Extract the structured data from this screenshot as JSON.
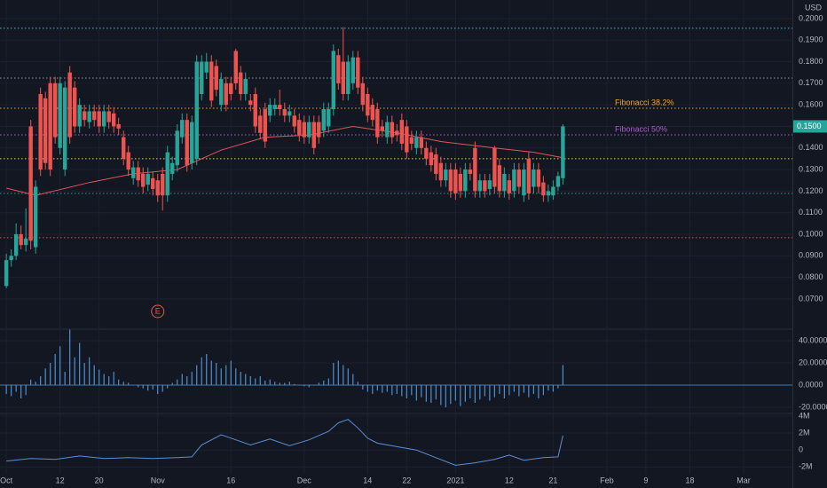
{
  "chart_data": [
    {
      "type": "candlestick",
      "currency": "USD",
      "x": [
        0,
        1,
        2,
        3,
        4,
        5,
        6,
        7,
        8,
        9,
        10,
        11,
        12,
        13,
        14,
        15,
        16,
        17,
        18,
        19,
        20,
        21,
        22,
        23,
        24,
        25,
        26,
        27,
        28,
        29,
        30,
        31,
        32,
        33,
        34,
        35,
        36,
        37,
        38,
        39,
        40,
        41,
        42,
        43,
        44,
        45,
        46,
        47,
        48,
        49,
        50,
        51,
        52,
        53,
        54,
        55,
        56,
        57,
        58,
        59,
        60,
        61,
        62,
        63,
        64,
        65,
        66,
        67,
        68,
        69,
        70,
        71,
        72,
        73,
        74,
        75,
        76,
        77,
        78,
        79,
        80,
        81,
        82,
        83,
        84,
        85,
        86,
        87,
        88,
        89,
        90,
        91,
        92,
        93,
        94,
        95,
        96,
        97,
        98,
        99,
        100,
        101,
        102,
        103,
        104,
        105,
        106,
        107,
        108,
        109,
        110,
        111,
        112,
        113,
        114
      ],
      "open": [
        0.076,
        0.088,
        0.09,
        0.1,
        0.095,
        0.15,
        0.094,
        0.165,
        0.163,
        0.17,
        0.17,
        0.14,
        0.13,
        0.175,
        0.168,
        0.15,
        0.157,
        0.152,
        0.157,
        0.157,
        0.15,
        0.157,
        0.156,
        0.151,
        0.145,
        0.138,
        0.126,
        0.131,
        0.128,
        0.123,
        0.126,
        0.125,
        0.128,
        0.118,
        0.128,
        0.132,
        0.145,
        0.153,
        0.133,
        0.135,
        0.165,
        0.175,
        0.18,
        0.178,
        0.16,
        0.17,
        0.17,
        0.185,
        0.175,
        0.165,
        0.162,
        0.165,
        0.155,
        0.158,
        0.155,
        0.158,
        0.16,
        0.158,
        0.155,
        0.155,
        0.153,
        0.152,
        0.145,
        0.152,
        0.152,
        0.148,
        0.15,
        0.158,
        0.183,
        0.18,
        0.165,
        0.17,
        0.182,
        0.17,
        0.165,
        0.16,
        0.158,
        0.15,
        0.145,
        0.152,
        0.148,
        0.153,
        0.15,
        0.145,
        0.14,
        0.145,
        0.14,
        0.138,
        0.137,
        0.133,
        0.125,
        0.13,
        0.13,
        0.128,
        0.12,
        0.13,
        0.14,
        0.12,
        0.125,
        0.121,
        0.14,
        0.132,
        0.12,
        0.125,
        0.12,
        0.13,
        0.118,
        0.135,
        0.122,
        0.13,
        0.124,
        0.118,
        0.118,
        0.122,
        0.126
      ],
      "high": [
        0.091,
        0.093,
        0.105,
        0.104,
        0.112,
        0.153,
        0.125,
        0.168,
        0.166,
        0.173,
        0.173,
        0.173,
        0.171,
        0.178,
        0.171,
        0.163,
        0.16,
        0.16,
        0.16,
        0.16,
        0.16,
        0.16,
        0.159,
        0.154,
        0.148,
        0.141,
        0.134,
        0.134,
        0.131,
        0.131,
        0.129,
        0.128,
        0.131,
        0.141,
        0.136,
        0.151,
        0.156,
        0.156,
        0.155,
        0.183,
        0.183,
        0.184,
        0.183,
        0.181,
        0.175,
        0.173,
        0.173,
        0.186,
        0.178,
        0.175,
        0.165,
        0.168,
        0.158,
        0.161,
        0.163,
        0.163,
        0.167,
        0.161,
        0.16,
        0.158,
        0.156,
        0.155,
        0.155,
        0.155,
        0.155,
        0.161,
        0.161,
        0.188,
        0.186,
        0.196,
        0.183,
        0.185,
        0.185,
        0.173,
        0.168,
        0.163,
        0.161,
        0.153,
        0.155,
        0.155,
        0.151,
        0.156,
        0.153,
        0.148,
        0.148,
        0.148,
        0.143,
        0.141,
        0.14,
        0.136,
        0.133,
        0.133,
        0.133,
        0.131,
        0.133,
        0.133,
        0.143,
        0.128,
        0.128,
        0.128,
        0.141,
        0.135,
        0.131,
        0.128,
        0.133,
        0.133,
        0.133,
        0.138,
        0.133,
        0.133,
        0.127,
        0.123,
        0.125,
        0.129,
        0.151
      ],
      "low": [
        0.075,
        0.085,
        0.088,
        0.093,
        0.092,
        0.093,
        0.091,
        0.127,
        0.13,
        0.127,
        0.142,
        0.137,
        0.127,
        0.142,
        0.147,
        0.147,
        0.15,
        0.149,
        0.15,
        0.147,
        0.147,
        0.149,
        0.147,
        0.146,
        0.132,
        0.127,
        0.123,
        0.122,
        0.119,
        0.12,
        0.118,
        0.115,
        0.111,
        0.115,
        0.125,
        0.129,
        0.142,
        0.129,
        0.13,
        0.132,
        0.162,
        0.172,
        0.159,
        0.164,
        0.157,
        0.157,
        0.162,
        0.167,
        0.162,
        0.162,
        0.157,
        0.147,
        0.144,
        0.14,
        0.152,
        0.155,
        0.155,
        0.152,
        0.152,
        0.147,
        0.143,
        0.142,
        0.142,
        0.137,
        0.142,
        0.145,
        0.147,
        0.155,
        0.167,
        0.162,
        0.162,
        0.167,
        0.165,
        0.157,
        0.152,
        0.15,
        0.142,
        0.145,
        0.142,
        0.142,
        0.143,
        0.139,
        0.135,
        0.139,
        0.137,
        0.137,
        0.132,
        0.129,
        0.125,
        0.122,
        0.122,
        0.117,
        0.116,
        0.117,
        0.117,
        0.125,
        0.117,
        0.117,
        0.117,
        0.118,
        0.119,
        0.117,
        0.117,
        0.116,
        0.117,
        0.119,
        0.115,
        0.116,
        0.119,
        0.119,
        0.115,
        0.115,
        0.116,
        0.12,
        0.123
      ],
      "close": [
        0.088,
        0.09,
        0.1,
        0.095,
        0.098,
        0.097,
        0.122,
        0.13,
        0.133,
        0.13,
        0.145,
        0.17,
        0.168,
        0.145,
        0.15,
        0.16,
        0.153,
        0.157,
        0.153,
        0.15,
        0.157,
        0.152,
        0.15,
        0.149,
        0.135,
        0.13,
        0.131,
        0.125,
        0.122,
        0.128,
        0.121,
        0.118,
        0.118,
        0.138,
        0.133,
        0.148,
        0.153,
        0.132,
        0.152,
        0.18,
        0.18,
        0.18,
        0.162,
        0.167,
        0.172,
        0.16,
        0.165,
        0.17,
        0.165,
        0.172,
        0.16,
        0.15,
        0.147,
        0.143,
        0.16,
        0.16,
        0.158,
        0.155,
        0.157,
        0.15,
        0.146,
        0.145,
        0.152,
        0.14,
        0.145,
        0.158,
        0.158,
        0.185,
        0.17,
        0.165,
        0.18,
        0.182,
        0.168,
        0.16,
        0.155,
        0.153,
        0.145,
        0.148,
        0.152,
        0.145,
        0.146,
        0.142,
        0.138,
        0.142,
        0.145,
        0.14,
        0.135,
        0.132,
        0.128,
        0.125,
        0.13,
        0.12,
        0.119,
        0.12,
        0.13,
        0.128,
        0.12,
        0.125,
        0.12,
        0.125,
        0.122,
        0.12,
        0.128,
        0.119,
        0.13,
        0.122,
        0.13,
        0.119,
        0.13,
        0.122,
        0.118,
        0.12,
        0.122,
        0.127,
        0.15
      ],
      "up_color": "#26a69a",
      "down_color": "#ef5350",
      "xlim": [
        -1.3,
        161
      ],
      "ylim": [
        0.0564,
        0.2086
      ],
      "yticks": [
        {
          "value": 0.2,
          "label": "0.2000"
        },
        {
          "value": 0.19,
          "label": "0.1900"
        },
        {
          "value": 0.18,
          "label": "0.1800"
        },
        {
          "value": 0.17,
          "label": "0.1700"
        },
        {
          "value": 0.16,
          "label": "0.1600"
        },
        {
          "value": 0.15,
          "label": "0.1500"
        },
        {
          "value": 0.14,
          "label": "0.1400"
        },
        {
          "value": 0.13,
          "label": "0.1300"
        },
        {
          "value": 0.12,
          "label": "0.1200"
        },
        {
          "value": 0.11,
          "label": "0.1100"
        },
        {
          "value": 0.1,
          "label": "0.1000"
        },
        {
          "value": 0.09,
          "label": "0.0900"
        },
        {
          "value": 0.08,
          "label": "0.0800"
        },
        {
          "value": 0.07,
          "label": "0.0700"
        }
      ],
      "xticks": [
        {
          "value": 0,
          "label": "Oct"
        },
        {
          "value": 11,
          "label": "12"
        },
        {
          "value": 19,
          "label": "20"
        },
        {
          "value": 31,
          "label": "Nov"
        },
        {
          "value": 46,
          "label": "16"
        },
        {
          "value": 61,
          "label": "Dec"
        },
        {
          "value": 74,
          "label": "14"
        },
        {
          "value": 82,
          "label": "22"
        },
        {
          "value": 92,
          "label": "2021"
        },
        {
          "value": 103,
          "label": "12"
        },
        {
          "value": 112,
          "label": "21"
        },
        {
          "value": 123,
          "label": "Feb"
        },
        {
          "value": 131,
          "label": "9"
        },
        {
          "value": 140,
          "label": "18"
        },
        {
          "value": 151,
          "label": "Mar"
        }
      ],
      "grid": true,
      "ma": {
        "color": "#e0555a",
        "x": [
          0,
          6,
          17,
          26,
          35,
          44,
          53,
          62,
          71,
          80,
          89,
          100,
          108,
          114
        ],
        "values": [
          0.1214,
          0.118,
          0.124,
          0.128,
          0.13,
          0.139,
          0.145,
          0.146,
          0.15,
          0.147,
          0.143,
          0.14,
          0.138,
          0.1355
        ]
      },
      "levels": [
        {
          "value": 0.1955,
          "color": "#26c6da"
        },
        {
          "value": 0.1724,
          "color": "#9598a1"
        },
        {
          "value": 0.1584,
          "color": "#f5a623",
          "label": "Fibonacci 38.2%"
        },
        {
          "value": 0.1461,
          "color": "#b05ccf",
          "label": "Fibonacci 50%"
        },
        {
          "value": 0.135,
          "color": "#e6d94a"
        },
        {
          "value": 0.1189,
          "color": "#26a69a"
        },
        {
          "value": 0.0984,
          "color": "#ef5350"
        }
      ],
      "price_tag": {
        "value": 0.15,
        "label": "0.1500",
        "color": "#26a69a"
      },
      "annotations": [
        {
          "x": 31,
          "text": "E",
          "color": "#ef5350"
        }
      ]
    },
    {
      "type": "bar",
      "color": "#4f8fd0",
      "values": [
        -8,
        -10,
        -6,
        -12,
        -9,
        5,
        3,
        8,
        15,
        20,
        28,
        35,
        12,
        50,
        25,
        38,
        20,
        25,
        18,
        14,
        10,
        8,
        12,
        5,
        3,
        2,
        0,
        -2,
        -3,
        -5,
        -4,
        -8,
        -6,
        -3,
        2,
        5,
        10,
        8,
        12,
        18,
        25,
        28,
        22,
        20,
        15,
        18,
        22,
        15,
        12,
        10,
        8,
        6,
        8,
        4,
        5,
        3,
        2,
        2,
        3,
        1,
        0,
        -1,
        -2,
        0,
        2,
        4,
        6,
        20,
        22,
        18,
        15,
        10,
        3,
        -4,
        -6,
        -8,
        -5,
        -7,
        -6,
        -9,
        -8,
        -10,
        -12,
        -9,
        -14,
        -11,
        -15,
        -16,
        -13,
        -18,
        -20,
        -17,
        -14,
        -19,
        -15,
        -12,
        -16,
        -13,
        -10,
        -14,
        -11,
        -8,
        -12,
        -9,
        -6,
        -10,
        -7,
        -11,
        -8,
        -12,
        -9,
        -5,
        -6,
        -3,
        18
      ],
      "xlim": [
        -1.3,
        161
      ],
      "ylim": [
        -25.6,
        49.6
      ],
      "yticks": [
        {
          "value": 40,
          "label": "40.0000"
        },
        {
          "value": 20,
          "label": "20.0000"
        },
        {
          "value": 0,
          "label": "0.0000"
        },
        {
          "value": -20,
          "label": "-20.0000"
        }
      ]
    },
    {
      "type": "line",
      "color": "#5b8ed6",
      "x": [
        0,
        5,
        10,
        15,
        20,
        25,
        30,
        35,
        38,
        40,
        44,
        46,
        50,
        54,
        58,
        62,
        66,
        68,
        70,
        72,
        74,
        76,
        80,
        84,
        88,
        92,
        96,
        100,
        103,
        106,
        110,
        113,
        114
      ],
      "values": [
        -1300000,
        -1000000,
        -1100000,
        -700000,
        -1000000,
        -900000,
        -1000000,
        -900000,
        -800000,
        600000,
        1800000,
        1400000,
        600000,
        1300000,
        500000,
        1200000,
        2200000,
        3200000,
        3600000,
        2600000,
        1400000,
        800000,
        400000,
        0,
        -900000,
        -1800000,
        -1500000,
        -1100000,
        -600000,
        -1200000,
        -900000,
        -800000,
        1700000
      ],
      "xlim": [
        -1.3,
        161
      ],
      "ylim": [
        -2800000,
        4200000
      ],
      "yticks": [
        {
          "value": 4000000,
          "label": "4M"
        },
        {
          "value": 2000000,
          "label": "2M"
        },
        0,
        {
          "value": -2000000,
          "label": "-2M"
        }
      ]
    }
  ]
}
